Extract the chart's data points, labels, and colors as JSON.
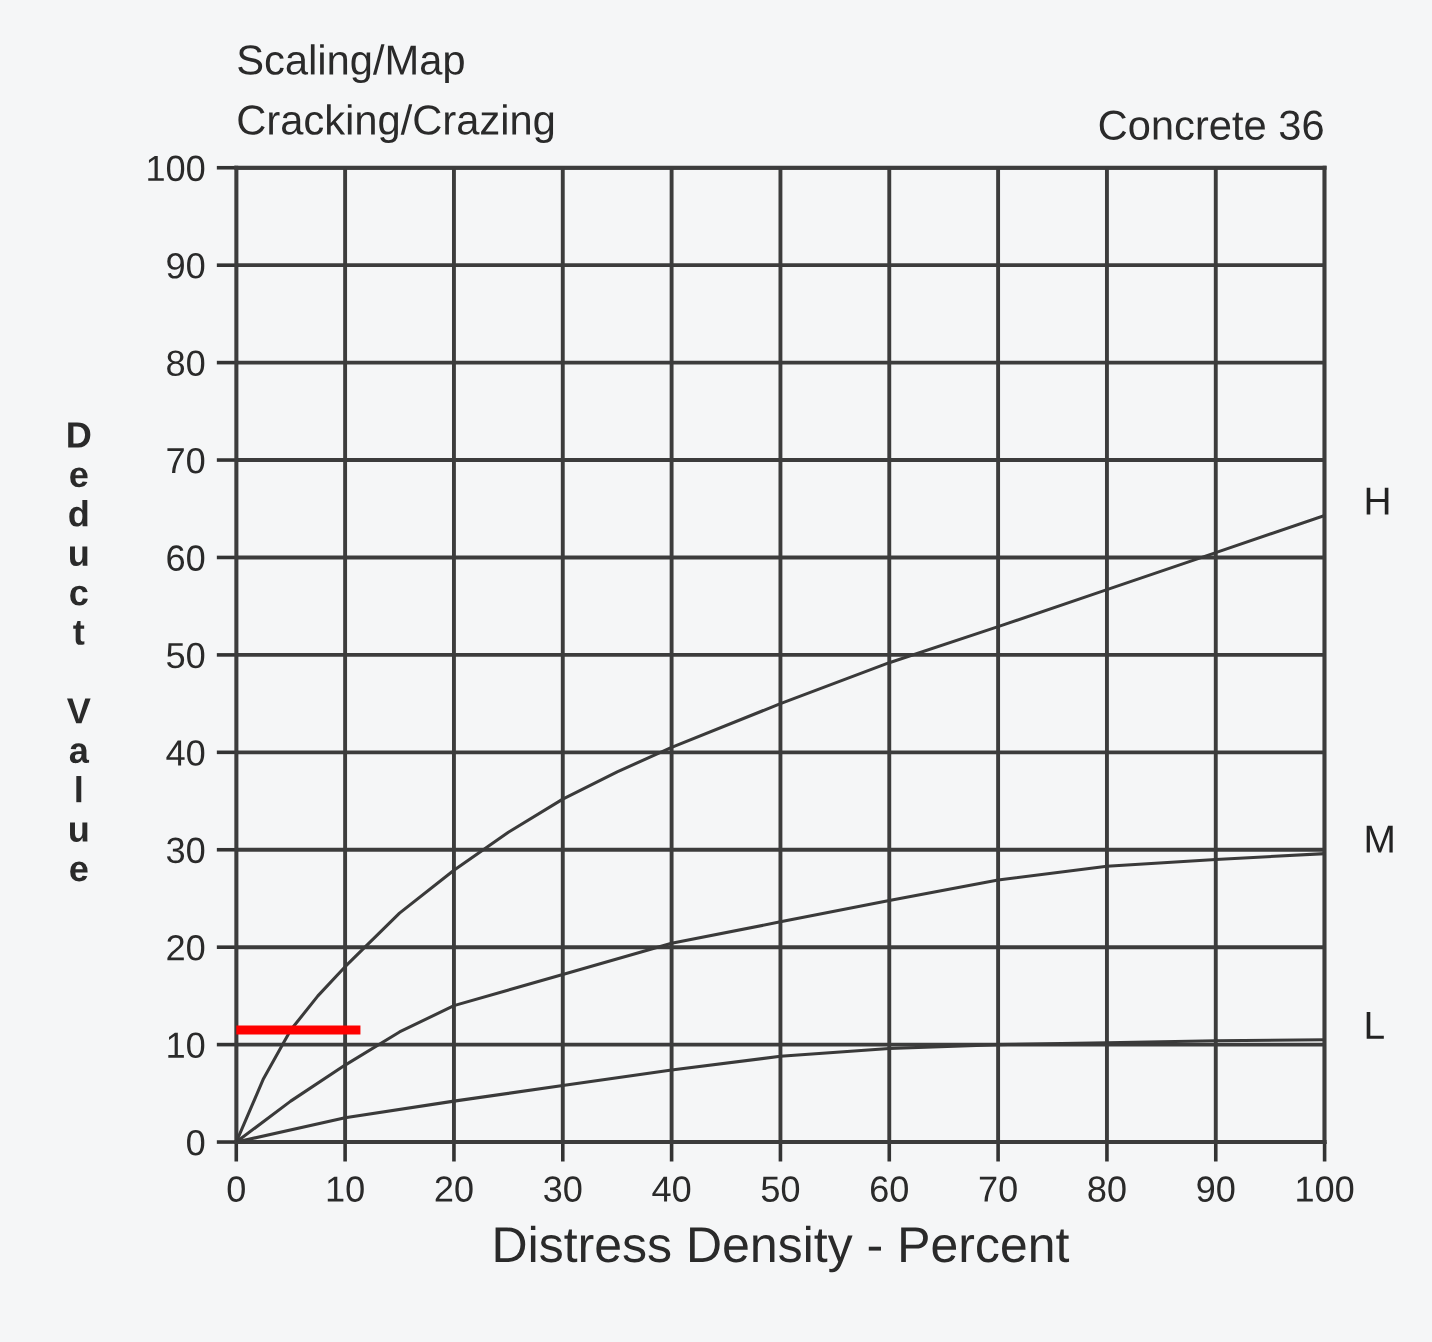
{
  "chart_data": {
    "type": "line",
    "title": "Scaling/Map\nCracking/Crazing",
    "xlabel": "Distress Density - Percent",
    "ylabel": "Deduct Value",
    "annotations": [
      "Concrete 36"
    ],
    "xlim": [
      0,
      100
    ],
    "ylim": [
      0,
      100
    ],
    "xticks": [
      0,
      10,
      20,
      30,
      40,
      50,
      60,
      70,
      80,
      90,
      100
    ],
    "yticks": [
      0,
      10,
      20,
      30,
      40,
      50,
      60,
      70,
      80,
      90,
      100
    ],
    "grid": true,
    "marker": "none",
    "line_style": "solid",
    "series": [
      {
        "name": "H",
        "color": "#3a3a3a",
        "x": [
          0,
          2.5,
          5,
          7.5,
          10,
          15,
          20,
          25,
          30,
          35,
          40,
          50,
          60,
          70,
          80,
          90,
          100
        ],
        "values": [
          0,
          6.5,
          11.5,
          15,
          18,
          23.5,
          27.9,
          31.8,
          35.2,
          38,
          40.5,
          45,
          49.2,
          52.9,
          56.7,
          60.5,
          64.3
        ]
      },
      {
        "name": "M",
        "color": "#3a3a3a",
        "x": [
          0,
          5,
          10,
          15,
          20,
          30,
          40,
          50,
          60,
          70,
          80,
          90,
          100
        ],
        "values": [
          0,
          4.2,
          7.9,
          11.3,
          14.0,
          17.2,
          20.4,
          22.6,
          24.8,
          26.9,
          28.3,
          29.0,
          29.6
        ]
      },
      {
        "name": "L",
        "color": "#3a3a3a",
        "x": [
          0,
          10,
          20,
          30,
          40,
          50,
          60,
          70,
          80,
          90,
          100
        ],
        "values": [
          0,
          2.5,
          4.2,
          5.8,
          7.4,
          8.8,
          9.6,
          10.0,
          10.2,
          10.4,
          10.5
        ]
      },
      {
        "type": "line",
        "color": "#ff0000",
        "x": [
          0,
          11
        ],
        "values": [
          11.5,
          11.5
        ]
      }
    ]
  }
}
